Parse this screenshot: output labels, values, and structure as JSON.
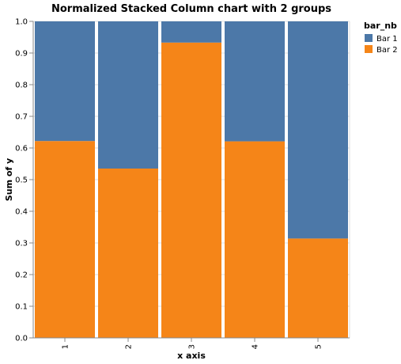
{
  "chart_data": {
    "type": "bar",
    "stacked": true,
    "normalized": true,
    "title": "Normalized Stacked Column chart with 2 groups",
    "xlabel": "x axis",
    "ylabel": "Sum of y",
    "categories": [
      "1",
      "2",
      "3",
      "4",
      "5"
    ],
    "ylim": [
      0,
      1
    ],
    "yticks": [
      "0.0",
      "0.1",
      "0.2",
      "0.3",
      "0.4",
      "0.5",
      "0.6",
      "0.7",
      "0.8",
      "0.9",
      "1.0"
    ],
    "series": [
      {
        "name": "Bar 2",
        "color": "#f58518",
        "values": [
          0.622,
          0.535,
          0.933,
          0.621,
          0.314
        ]
      },
      {
        "name": "Bar 1",
        "color": "#4c78a8",
        "values": [
          0.378,
          0.465,
          0.067,
          0.379,
          0.686
        ]
      }
    ],
    "legend": {
      "title": "bar_nb",
      "position": "top-right",
      "entries": [
        {
          "label": "Bar 1",
          "color": "#4c78a8"
        },
        {
          "label": "Bar 2",
          "color": "#f58518"
        }
      ]
    },
    "grid": true
  }
}
